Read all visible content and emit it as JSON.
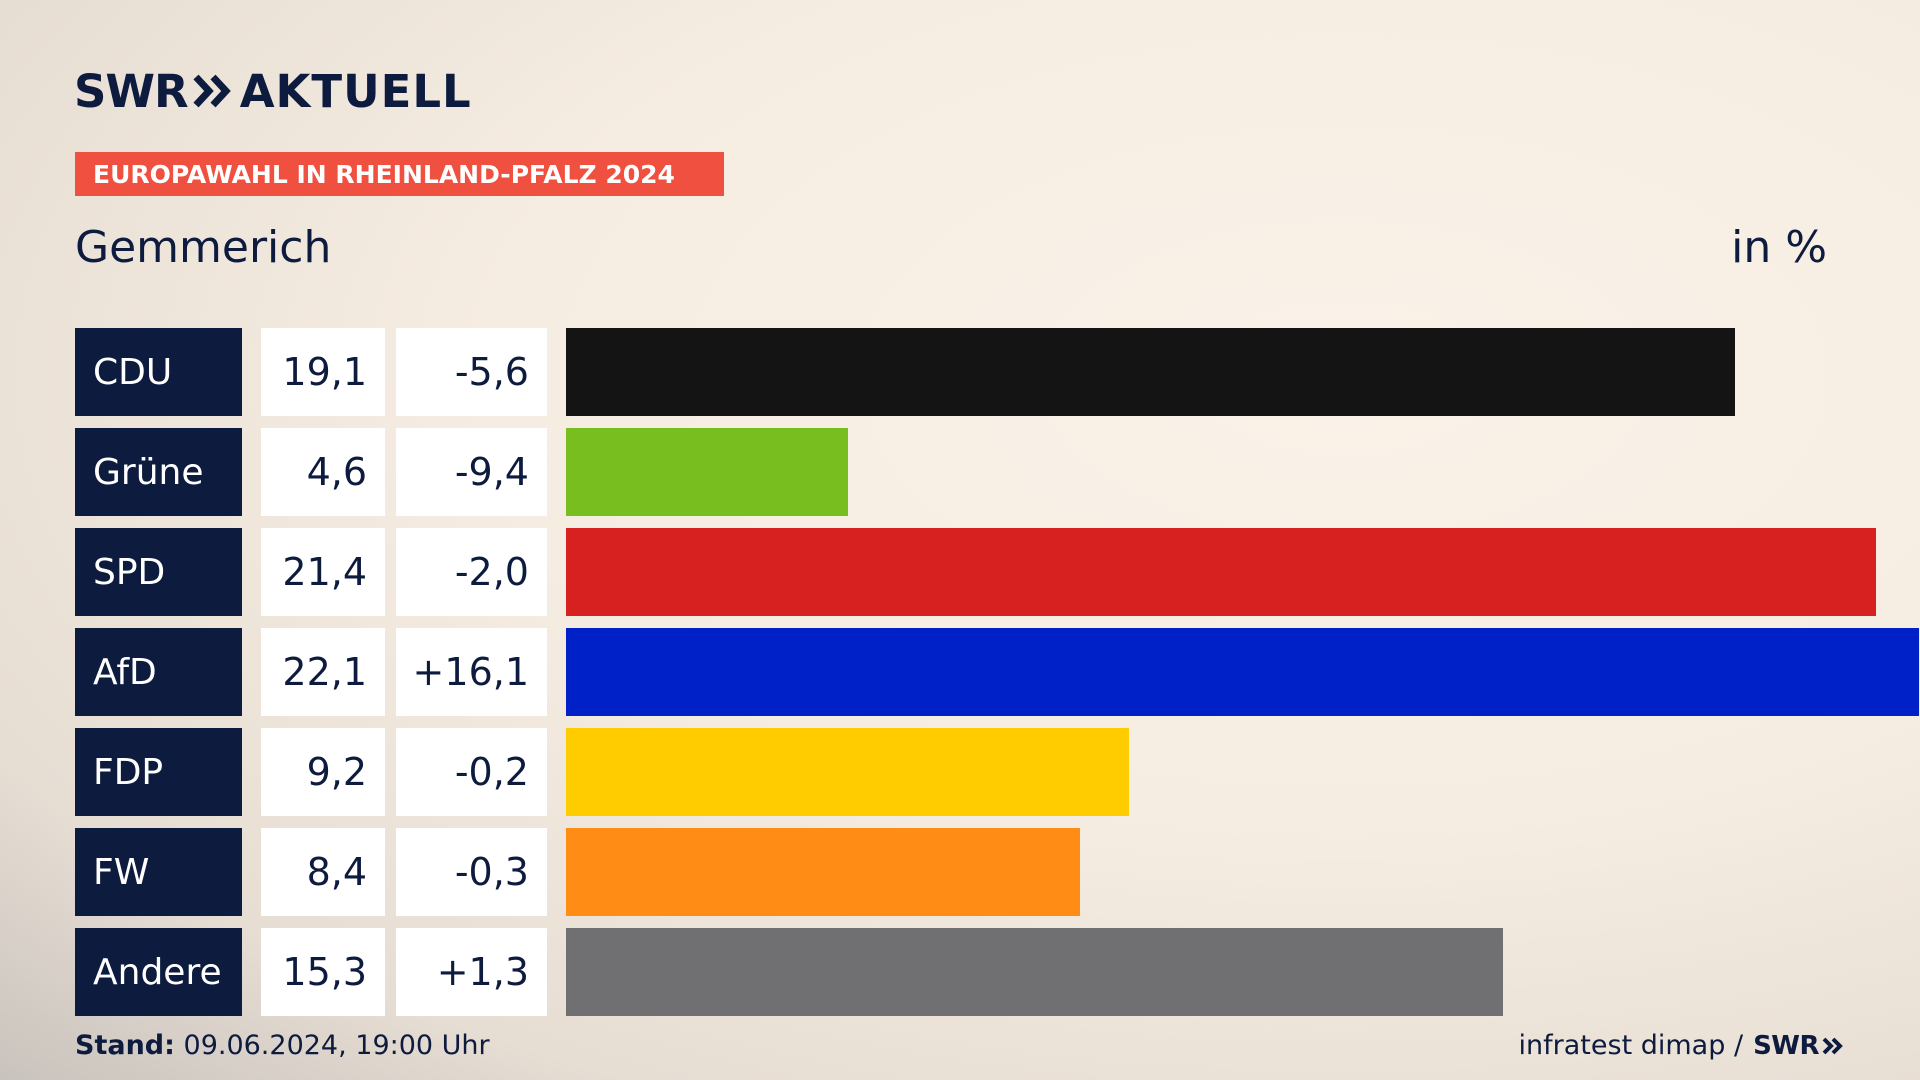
{
  "header": {
    "logo_brand": "SWR",
    "logo_product": "AKTUELL",
    "badge": "EUROPAWAHL IN RHEINLAND-PFALZ 2024",
    "place": "Gemmerich",
    "unit": "in %"
  },
  "colors": {
    "navy": "#0d1b3e",
    "badge": "#f0503f"
  },
  "chart_data": {
    "type": "bar",
    "categories": [
      "CDU",
      "Grüne",
      "SPD",
      "AfD",
      "FDP",
      "FW",
      "Andere"
    ],
    "values": [
      19.1,
      4.6,
      21.4,
      22.1,
      9.2,
      8.4,
      15.3
    ],
    "labels": [
      "19,1",
      "4,6",
      "21,4",
      "22,1",
      "9,2",
      "8,4",
      "15,3"
    ],
    "diff_labels": [
      "-5,6",
      "-9,4",
      "-2,0",
      "+16,1",
      "-0,2",
      "-0,3",
      "+1,3"
    ],
    "colors": [
      "#141414",
      "#78be1e",
      "#d72020",
      "#0020c8",
      "#ffcc00",
      "#ff8c14",
      "#707072"
    ],
    "xlim": [
      0,
      22.1
    ]
  },
  "footer": {
    "stand_label": "Stand:",
    "stand_value": "09.06.2024, 19:00 Uhr",
    "source": "infratest dimap /",
    "source_brand": "SWR"
  }
}
